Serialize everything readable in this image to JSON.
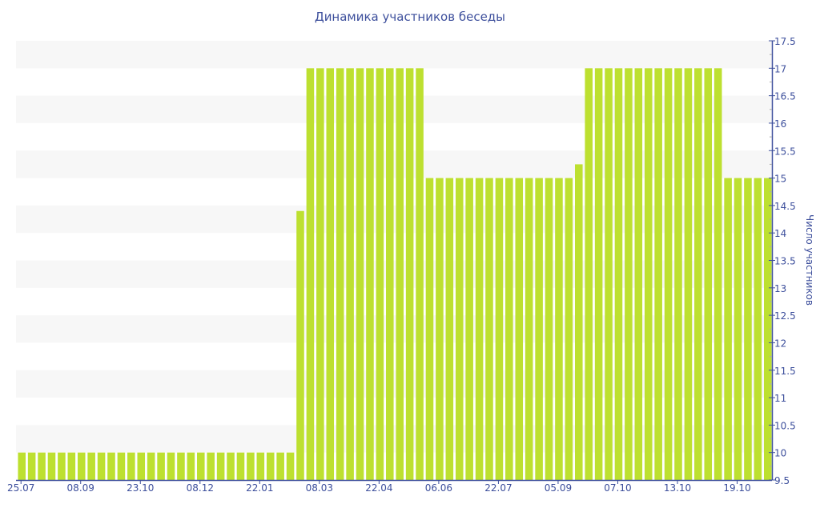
{
  "chart_data": {
    "type": "bar",
    "title": "Динамика участников беседы",
    "xlabel": "",
    "ylabel": "Число участников",
    "ylim": [
      9.5,
      17.5
    ],
    "y_ticks": [
      9.5,
      10,
      10.5,
      11,
      11.5,
      12,
      12.5,
      13,
      13.5,
      14,
      14.5,
      15,
      15.5,
      16,
      16.5,
      17,
      17.5
    ],
    "y_axis_position": "right",
    "x_tick_labels": [
      "25.07",
      "08.09",
      "23.10",
      "08.12",
      "22.01",
      "08.03",
      "22.04",
      "06.06",
      "22.07",
      "05.09",
      "07.10",
      "13.10",
      "19.10"
    ],
    "x_tick_every_n_bars": 6,
    "values": [
      10,
      10,
      10,
      10,
      10,
      10,
      10,
      10,
      10,
      10,
      10,
      10,
      10,
      10,
      10,
      10,
      10,
      10,
      10,
      10,
      10,
      10,
      10,
      10,
      10,
      10,
      10,
      10,
      14.4,
      17,
      17,
      17,
      17,
      17,
      17,
      17,
      17,
      17,
      17,
      17,
      17,
      15,
      15,
      15,
      15,
      15,
      15,
      15,
      15,
      15,
      15,
      15,
      15,
      15,
      15,
      15,
      15.25,
      17,
      17,
      17,
      17,
      17,
      17,
      17,
      17,
      17,
      17,
      17,
      17,
      17,
      17,
      15,
      15,
      15,
      15,
      15
    ],
    "bar_color": "#bde030",
    "text_color": "#3d4f9c",
    "grid": "alternating horizontal bands"
  }
}
